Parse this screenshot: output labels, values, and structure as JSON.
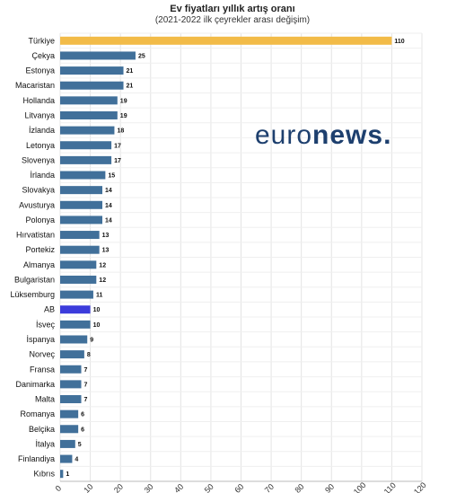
{
  "chart_data": {
    "type": "bar",
    "orientation": "horizontal",
    "title": "Ev fiyatları yıllık artış oranı",
    "subtitle": "(2021-2022 ilk çeyrekler arası değişim)",
    "categories": [
      "Türkiye",
      "Çekya",
      "Estonya",
      "Macaristan",
      "Hollanda",
      "Litvanya",
      "İzlanda",
      "Letonya",
      "Slovenya",
      "İrlanda",
      "Slovakya",
      "Avusturya",
      "Polonya",
      "Hırvatistan",
      "Portekiz",
      "Almanya",
      "Bulgaristan",
      "Lüksemburg",
      "AB",
      "İsveç",
      "İspanya",
      "Norveç",
      "Fransa",
      "Danimarka",
      "Malta",
      "Romanya",
      "Belçika",
      "İtalya",
      "Finlandiya",
      "Kıbrıs"
    ],
    "values": [
      110,
      25,
      21,
      21,
      19,
      19,
      18,
      17,
      17,
      15,
      14,
      14,
      14,
      13,
      13,
      12,
      12,
      11,
      10,
      10,
      9,
      8,
      7,
      7,
      7,
      6,
      6,
      5,
      4,
      1
    ],
    "xlim": [
      0,
      120
    ],
    "xticks": [
      "0",
      "10",
      "20",
      "30",
      "40",
      "50",
      "60",
      "70",
      "80",
      "90",
      "100",
      "110",
      "120"
    ],
    "grid": true,
    "colors": {
      "default": "#41709a",
      "highlight_turkey": "#f2bb48",
      "highlight_eu": "#3b3bdb"
    }
  },
  "watermark": {
    "part1": "euro",
    "part2": "news."
  }
}
